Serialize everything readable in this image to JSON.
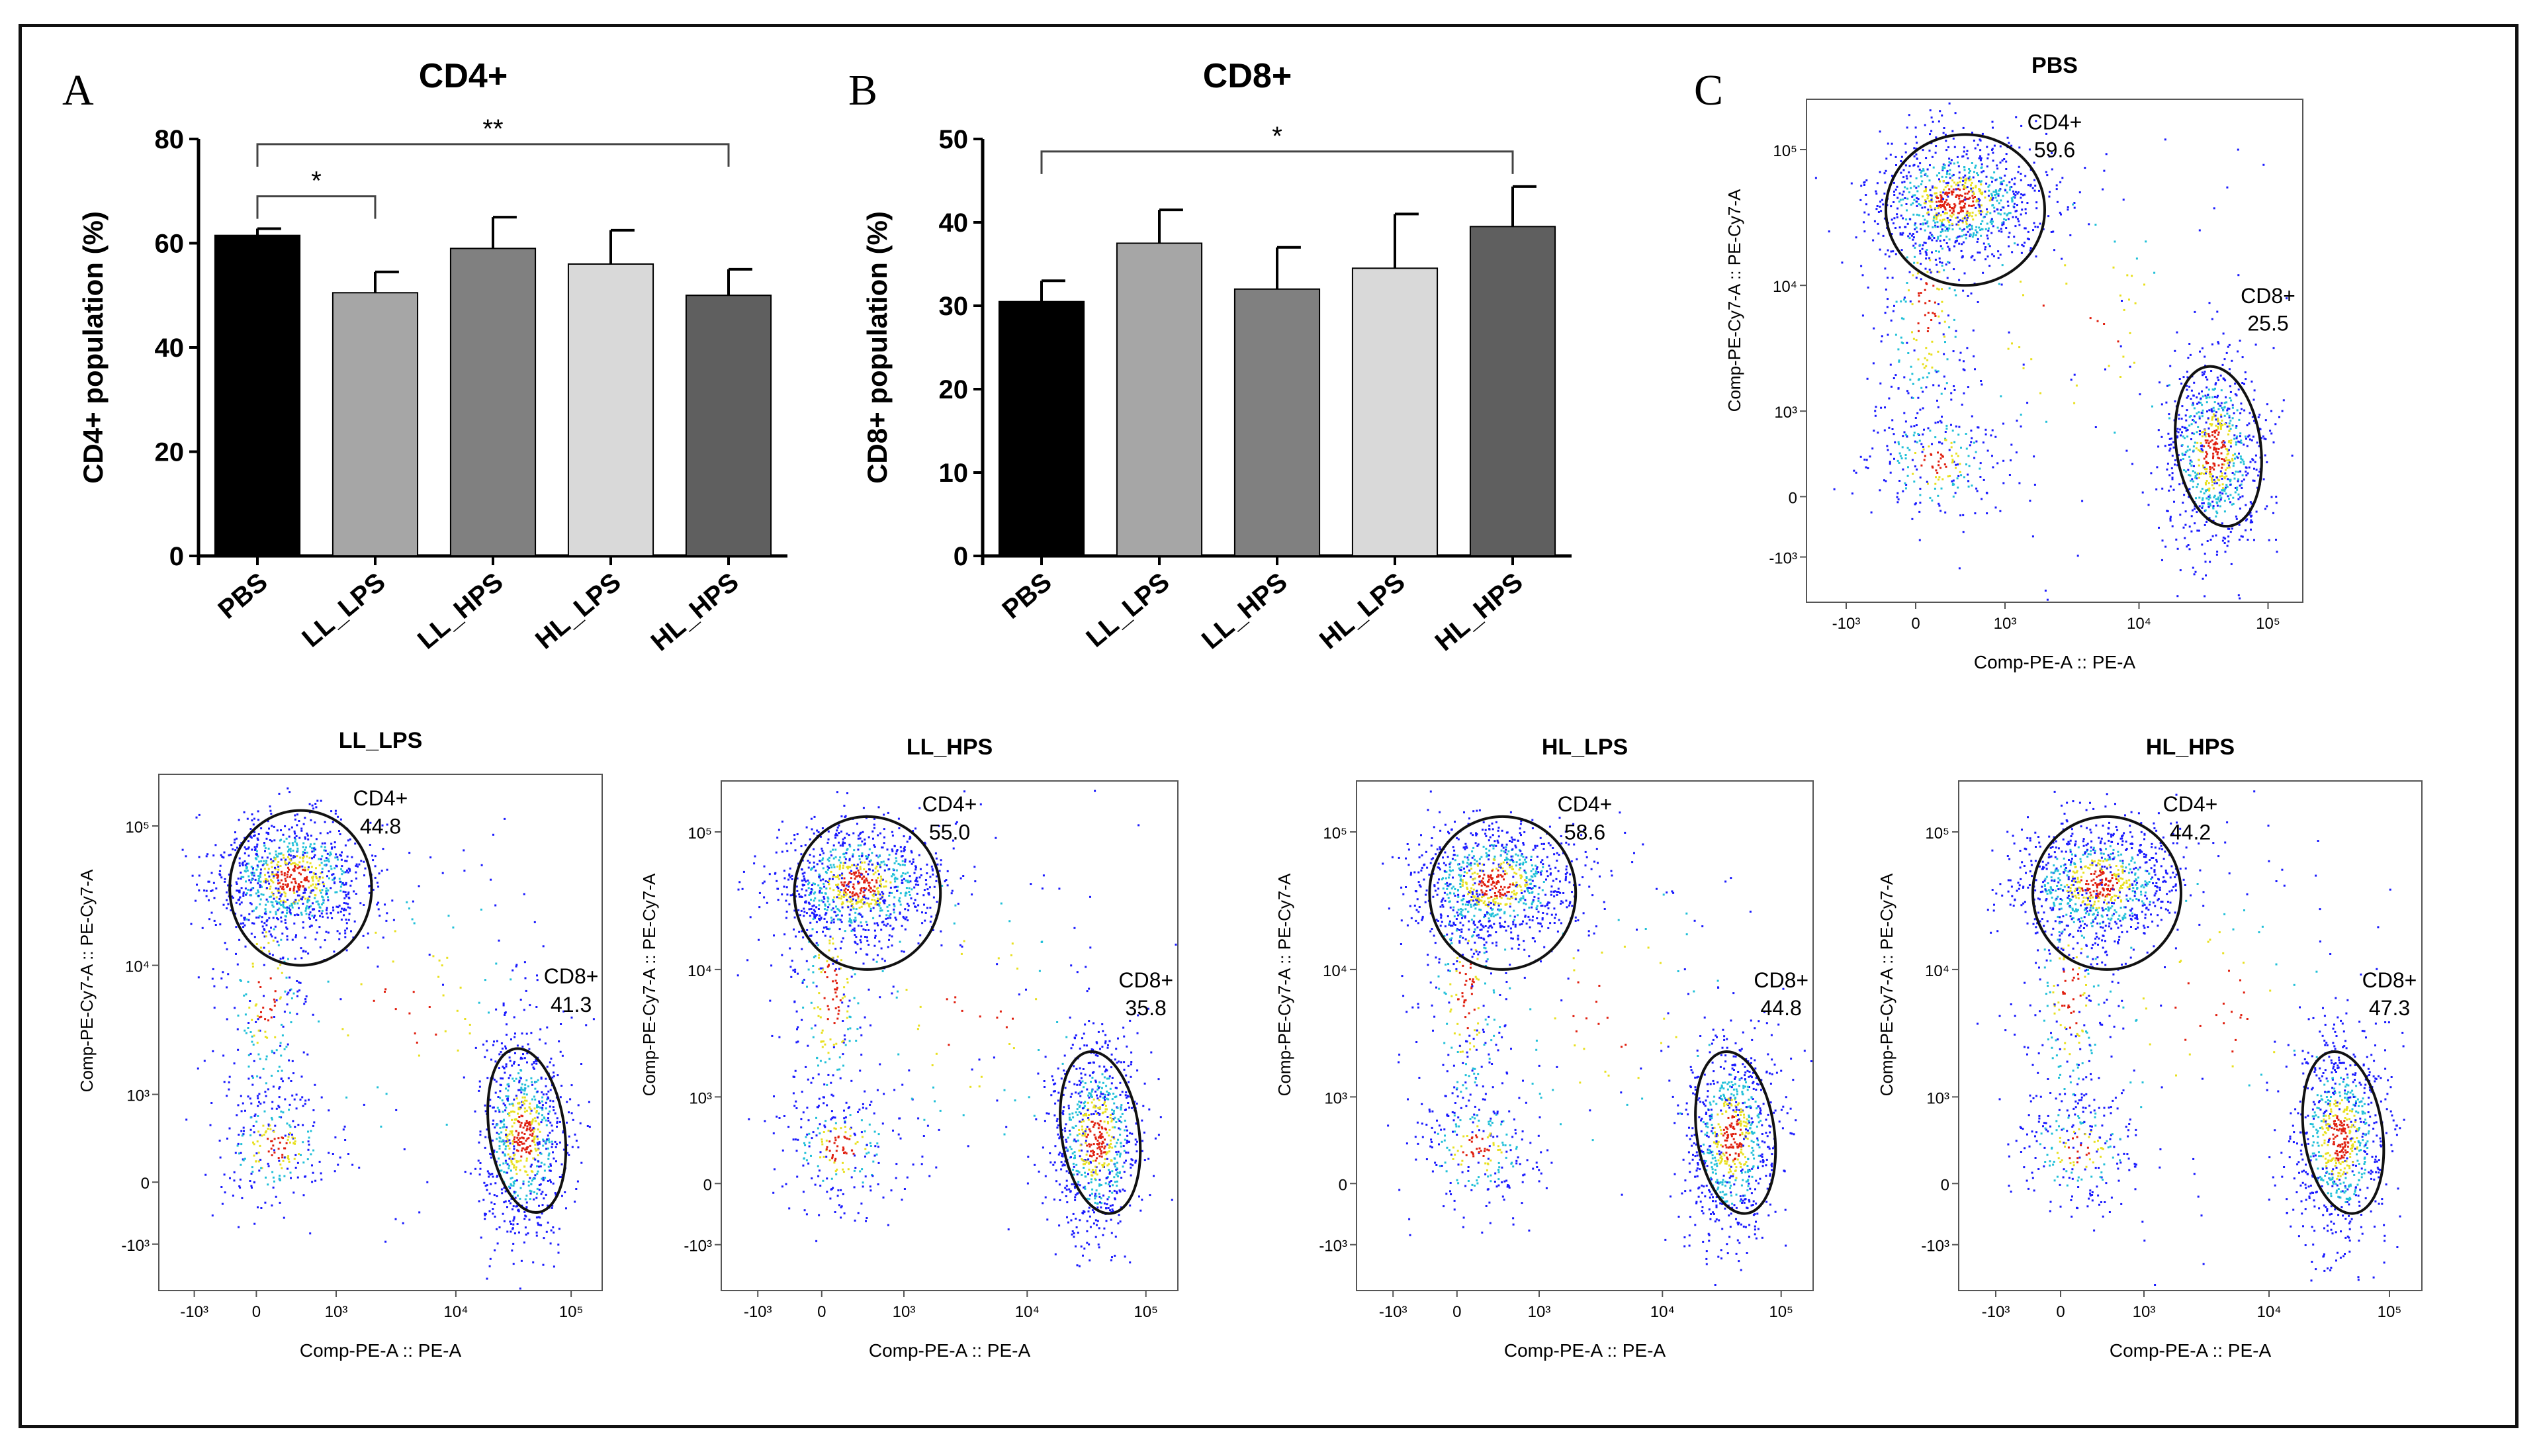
{
  "panel_letters": {
    "a": "A",
    "b": "B",
    "c": "C"
  },
  "colors": {
    "axis": "#000000",
    "dot_low": "#1a1aff",
    "dot_mid": "#22c0d8",
    "dot_high": "#e8e020",
    "dot_peak": "#e02010"
  },
  "chart_data": [
    {
      "type": "bar",
      "title": "CD4+",
      "ylabel": "CD4+ population (%)",
      "ylim": [
        0,
        80
      ],
      "yticks": [
        "0",
        "20",
        "40",
        "60",
        "80"
      ],
      "categories": [
        "PBS",
        "LL_LPS",
        "LL_HPS",
        "HL_LPS",
        "HL_HPS"
      ],
      "values": [
        61.5,
        50.5,
        59,
        56,
        50
      ],
      "errors": [
        1.3,
        4,
        6,
        6.5,
        5
      ],
      "bar_colors": [
        "#000000",
        "#a6a6a6",
        "#808080",
        "#d9d9d9",
        "#5f5f5f"
      ],
      "significance": [
        {
          "from": "PBS",
          "to": "LL_LPS",
          "label": "*",
          "level": 69
        },
        {
          "from": "PBS",
          "to": "HL_HPS",
          "label": "**",
          "level": 79
        }
      ]
    },
    {
      "type": "bar",
      "title": "CD8+",
      "ylabel": "CD8+ population (%)",
      "ylim": [
        0,
        50
      ],
      "yticks": [
        "0",
        "10",
        "20",
        "30",
        "40",
        "50"
      ],
      "categories": [
        "PBS",
        "LL_LPS",
        "LL_HPS",
        "HL_LPS",
        "HL_HPS"
      ],
      "values": [
        30.5,
        37.5,
        32,
        34.5,
        39.5
      ],
      "errors": [
        2.5,
        4,
        5,
        6.5,
        4.8
      ],
      "bar_colors": [
        "#000000",
        "#a6a6a6",
        "#808080",
        "#d9d9d9",
        "#5f5f5f"
      ],
      "significance": [
        {
          "from": "PBS",
          "to": "HL_HPS",
          "label": "*",
          "level": 48.5
        }
      ]
    },
    {
      "type": "scatter",
      "subtype": "flow-cytometry-density",
      "xlabel": "Comp-PE-A :: PE-A",
      "ylabel": "Comp-PE-Cy7-A :: PE-Cy7-A",
      "xticks": [
        "-10³",
        "0",
        "10³",
        "10⁴",
        "10⁵"
      ],
      "yticks": [
        "10⁵",
        "10⁴",
        "10³",
        "0",
        "-10³"
      ],
      "panels": [
        {
          "title": "PBS",
          "cd4_label": "CD4+",
          "cd4_value": "59.6",
          "cd8_label": "CD8+",
          "cd8_value": "25.5"
        },
        {
          "title": "LL_LPS",
          "cd4_label": "CD4+",
          "cd4_value": "44.8",
          "cd8_label": "CD8+",
          "cd8_value": "41.3"
        },
        {
          "title": "LL_HPS",
          "cd4_label": "CD4+",
          "cd4_value": "55.0",
          "cd8_label": "CD8+",
          "cd8_value": "35.8"
        },
        {
          "title": "HL_LPS",
          "cd4_label": "CD4+",
          "cd4_value": "58.6",
          "cd8_label": "CD8+",
          "cd8_value": "44.8"
        },
        {
          "title": "HL_HPS",
          "cd4_label": "CD4+",
          "cd4_value": "44.2",
          "cd8_label": "CD8+",
          "cd8_value": "47.3"
        }
      ]
    }
  ]
}
